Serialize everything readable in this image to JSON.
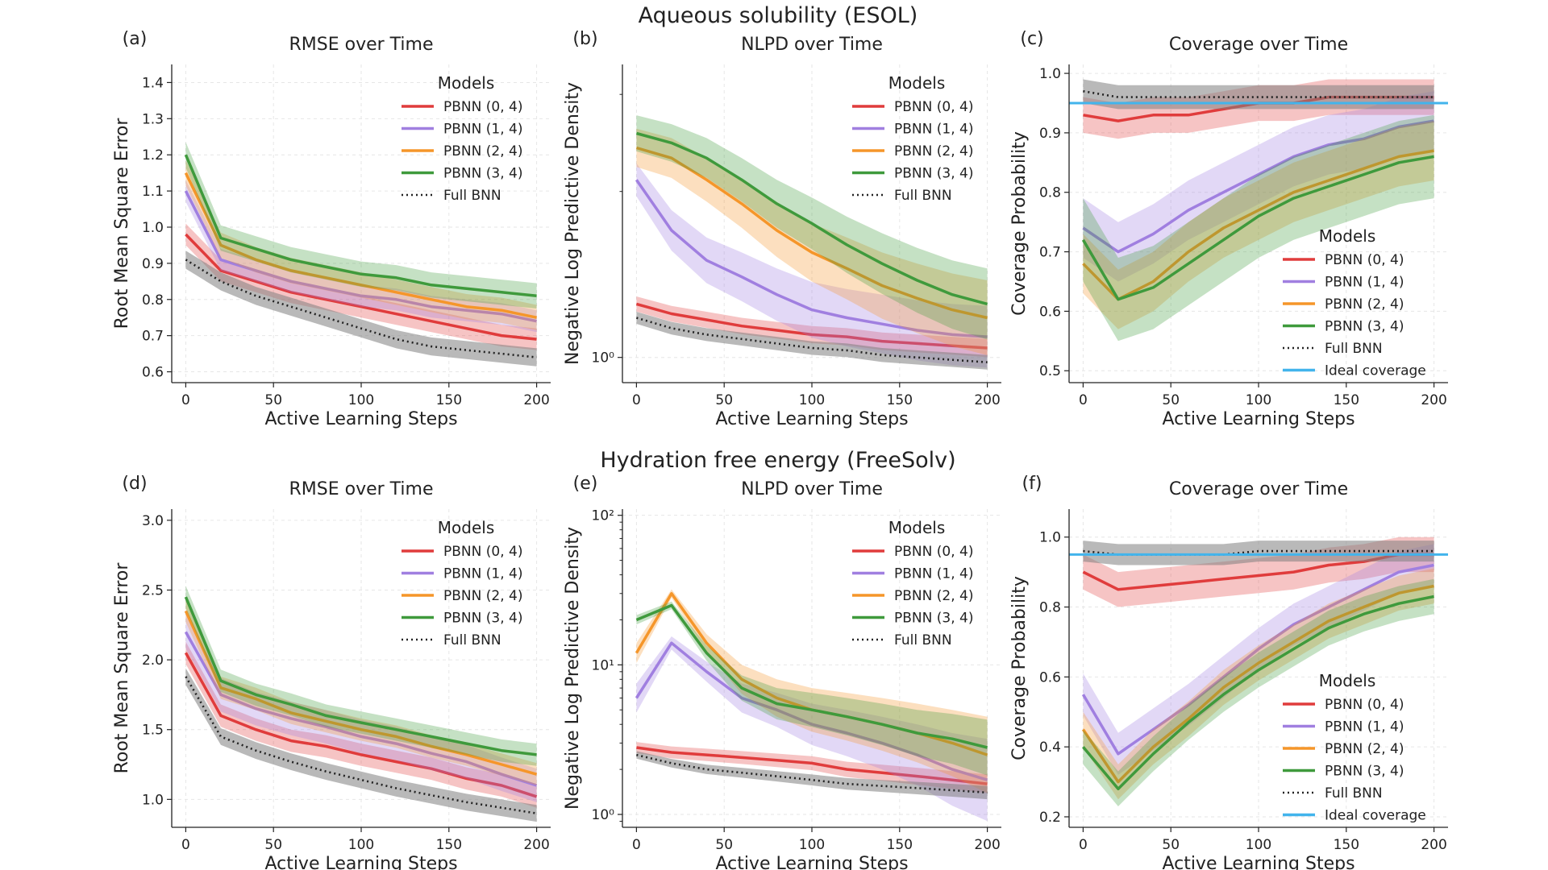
{
  "row_titles": [
    "Aqueous solubility (ESOL)",
    "Hydration free energy (FreeSolv)"
  ],
  "colors": {
    "PBNN (0, 4)": "#e03c3c",
    "PBNN (1, 4)": "#a07fe0",
    "PBNN (2, 4)": "#f5962a",
    "PBNN (3, 4)": "#3f9a3c",
    "Full BNN": "#222222",
    "Ideal coverage": "#42b4ec"
  },
  "legend_title": "Models",
  "xlabel": "Active Learning Steps",
  "chart_data": [
    {
      "panel": "(a)",
      "type": "line",
      "title": "RMSE over Time",
      "xlabel": "Active Learning Steps",
      "ylabel": "Root Mean Square Error",
      "xlim": [
        -8,
        208
      ],
      "ylim": [
        0.57,
        1.45
      ],
      "scale": "linear",
      "xticks": [
        0,
        50,
        100,
        150,
        200
      ],
      "yticks": [
        0.6,
        0.7,
        0.8,
        0.9,
        1.0,
        1.1,
        1.2,
        1.3,
        1.4
      ],
      "yticklabels": [
        "0.6",
        "0.7",
        "0.8",
        "0.9",
        "1.0",
        "1.1",
        "1.2",
        "1.3",
        "1.4"
      ],
      "legend": [
        "PBNN (0, 4)",
        "PBNN (1, 4)",
        "PBNN (2, 4)",
        "PBNN (3, 4)",
        "Full BNN"
      ],
      "x": [
        0,
        20,
        40,
        60,
        80,
        100,
        120,
        140,
        160,
        180,
        200
      ],
      "series": [
        {
          "name": "PBNN (0, 4)",
          "values": [
            0.98,
            0.88,
            0.85,
            0.82,
            0.8,
            0.78,
            0.76,
            0.74,
            0.72,
            0.7,
            0.69
          ],
          "band": 0.03
        },
        {
          "name": "PBNN (1, 4)",
          "values": [
            1.1,
            0.91,
            0.88,
            0.85,
            0.83,
            0.81,
            0.8,
            0.78,
            0.77,
            0.76,
            0.74
          ],
          "band": 0.03
        },
        {
          "name": "PBNN (2, 4)",
          "values": [
            1.15,
            0.95,
            0.91,
            0.88,
            0.86,
            0.84,
            0.82,
            0.8,
            0.78,
            0.77,
            0.75
          ],
          "band": 0.035
        },
        {
          "name": "PBNN (3, 4)",
          "values": [
            1.2,
            0.97,
            0.94,
            0.91,
            0.89,
            0.87,
            0.86,
            0.84,
            0.83,
            0.82,
            0.81
          ],
          "band": 0.035
        },
        {
          "name": "Full BNN",
          "values": [
            0.91,
            0.85,
            0.81,
            0.78,
            0.75,
            0.72,
            0.69,
            0.67,
            0.66,
            0.65,
            0.64
          ],
          "band": 0.025
        }
      ]
    },
    {
      "panel": "(b)",
      "type": "line",
      "title": "NLPD over Time",
      "xlabel": "Active Learning Steps",
      "ylabel": "Negative Log Predictive Density",
      "xlim": [
        -8,
        208
      ],
      "ylim": [
        0.9,
        3.4
      ],
      "scale": "log",
      "xticks": [
        0,
        50,
        100,
        150,
        200
      ],
      "yticks": [
        1
      ],
      "yticklabels": [
        "10⁰"
      ],
      "legend": [
        "PBNN (0, 4)",
        "PBNN (1, 4)",
        "PBNN (2, 4)",
        "PBNN (3, 4)",
        "Full BNN"
      ],
      "x": [
        0,
        20,
        40,
        60,
        80,
        100,
        120,
        140,
        160,
        180,
        200
      ],
      "series": [
        {
          "name": "PBNN (0, 4)",
          "values": [
            1.25,
            1.2,
            1.17,
            1.14,
            1.12,
            1.1,
            1.09,
            1.07,
            1.06,
            1.05,
            1.04
          ],
          "band": 0.04
        },
        {
          "name": "PBNN (1, 4)",
          "values": [
            2.1,
            1.7,
            1.5,
            1.4,
            1.3,
            1.22,
            1.18,
            1.15,
            1.12,
            1.1,
            1.09
          ],
          "band": 0.15
        },
        {
          "name": "PBNN (2, 4)",
          "values": [
            2.4,
            2.3,
            2.1,
            1.9,
            1.7,
            1.55,
            1.45,
            1.35,
            1.28,
            1.22,
            1.18
          ],
          "band": 0.2
        },
        {
          "name": "PBNN (3, 4)",
          "values": [
            2.55,
            2.45,
            2.3,
            2.1,
            1.9,
            1.75,
            1.6,
            1.48,
            1.38,
            1.3,
            1.25
          ],
          "band": 0.2
        },
        {
          "name": "Full BNN",
          "values": [
            1.18,
            1.13,
            1.1,
            1.08,
            1.06,
            1.04,
            1.03,
            1.01,
            1.0,
            0.99,
            0.98
          ],
          "band": 0.03
        }
      ]
    },
    {
      "panel": "(c)",
      "type": "line",
      "title": "Coverage over Time",
      "xlabel": "Active Learning Steps",
      "ylabel": "Coverage Probability",
      "xlim": [
        -8,
        208
      ],
      "ylim": [
        0.48,
        1.015
      ],
      "scale": "linear",
      "xticks": [
        0,
        50,
        100,
        150,
        200
      ],
      "yticks": [
        0.5,
        0.6,
        0.7,
        0.8,
        0.9,
        1.0
      ],
      "yticklabels": [
        "0.5",
        "0.6",
        "0.7",
        "0.8",
        "0.9",
        "1.0"
      ],
      "legend": [
        "PBNN (0, 4)",
        "PBNN (1, 4)",
        "PBNN (2, 4)",
        "PBNN (3, 4)",
        "Full BNN",
        "Ideal coverage"
      ],
      "ideal": 0.95,
      "x": [
        0,
        20,
        40,
        60,
        80,
        100,
        120,
        140,
        160,
        180,
        200
      ],
      "series": [
        {
          "name": "PBNN (0, 4)",
          "values": [
            0.93,
            0.92,
            0.93,
            0.93,
            0.94,
            0.95,
            0.95,
            0.96,
            0.96,
            0.96,
            0.96
          ],
          "band": 0.03
        },
        {
          "name": "PBNN (1, 4)",
          "values": [
            0.74,
            0.7,
            0.73,
            0.77,
            0.8,
            0.83,
            0.86,
            0.88,
            0.89,
            0.91,
            0.92
          ],
          "band": 0.05
        },
        {
          "name": "PBNN (2, 4)",
          "values": [
            0.68,
            0.62,
            0.65,
            0.7,
            0.74,
            0.77,
            0.8,
            0.82,
            0.84,
            0.86,
            0.87
          ],
          "band": 0.05
        },
        {
          "name": "PBNN (3, 4)",
          "values": [
            0.72,
            0.62,
            0.64,
            0.68,
            0.72,
            0.76,
            0.79,
            0.81,
            0.83,
            0.85,
            0.86
          ],
          "band": 0.07
        },
        {
          "name": "Full BNN",
          "values": [
            0.97,
            0.96,
            0.96,
            0.96,
            0.96,
            0.96,
            0.96,
            0.96,
            0.96,
            0.96,
            0.96
          ],
          "band": 0.02
        }
      ]
    },
    {
      "panel": "(d)",
      "type": "line",
      "title": "RMSE over Time",
      "xlabel": "Active Learning Steps",
      "ylabel": "Root Mean Square Error",
      "xlim": [
        -8,
        208
      ],
      "ylim": [
        0.8,
        3.08
      ],
      "scale": "linear",
      "xticks": [
        0,
        50,
        100,
        150,
        200
      ],
      "yticks": [
        1.0,
        1.5,
        2.0,
        2.5,
        3.0
      ],
      "yticklabels": [
        "1.0",
        "1.5",
        "2.0",
        "2.5",
        "3.0"
      ],
      "legend": [
        "PBNN (0, 4)",
        "PBNN (1, 4)",
        "PBNN (2, 4)",
        "PBNN (3, 4)",
        "Full BNN"
      ],
      "x": [
        0,
        20,
        40,
        60,
        80,
        100,
        120,
        140,
        160,
        180,
        200
      ],
      "series": [
        {
          "name": "PBNN (0, 4)",
          "values": [
            2.05,
            1.6,
            1.5,
            1.42,
            1.38,
            1.32,
            1.27,
            1.22,
            1.15,
            1.1,
            1.02
          ],
          "band": 0.08
        },
        {
          "name": "PBNN (1, 4)",
          "values": [
            2.2,
            1.75,
            1.65,
            1.58,
            1.52,
            1.45,
            1.4,
            1.33,
            1.27,
            1.18,
            1.1
          ],
          "band": 0.12
        },
        {
          "name": "PBNN (2, 4)",
          "values": [
            2.35,
            1.8,
            1.72,
            1.62,
            1.56,
            1.5,
            1.45,
            1.38,
            1.32,
            1.25,
            1.18
          ],
          "band": 0.08
        },
        {
          "name": "PBNN (3, 4)",
          "values": [
            2.45,
            1.85,
            1.75,
            1.68,
            1.6,
            1.55,
            1.5,
            1.45,
            1.4,
            1.35,
            1.32
          ],
          "band": 0.08
        },
        {
          "name": "Full BNN",
          "values": [
            1.88,
            1.45,
            1.35,
            1.27,
            1.2,
            1.14,
            1.08,
            1.03,
            0.98,
            0.94,
            0.9
          ],
          "band": 0.06
        }
      ]
    },
    {
      "panel": "(e)",
      "type": "line",
      "title": "NLPD over Time",
      "xlabel": "Active Learning Steps",
      "ylabel": "Negative Log Predictive Density",
      "xlim": [
        -8,
        208
      ],
      "ylim": [
        0.82,
        110
      ],
      "scale": "log",
      "xticks": [
        0,
        50,
        100,
        150,
        200
      ],
      "yticks": [
        1,
        10,
        100
      ],
      "yticklabels": [
        "10⁰",
        "10¹",
        "10²"
      ],
      "legend": [
        "PBNN (0, 4)",
        "PBNN (1, 4)",
        "PBNN (2, 4)",
        "PBNN (3, 4)",
        "Full BNN"
      ],
      "x": [
        0,
        20,
        40,
        60,
        80,
        100,
        120,
        140,
        160,
        180,
        200
      ],
      "series": [
        {
          "name": "PBNN (0, 4)",
          "values": [
            2.8,
            2.6,
            2.5,
            2.4,
            2.3,
            2.2,
            2.0,
            1.9,
            1.8,
            1.7,
            1.6
          ],
          "band": 0.25
        },
        {
          "name": "PBNN (1, 4)",
          "values": [
            6.0,
            14.0,
            9.0,
            6.0,
            5.0,
            4.0,
            3.5,
            3.0,
            2.5,
            2.0,
            1.7
          ],
          "band": 1.5
        },
        {
          "name": "PBNN (2, 4)",
          "values": [
            12.0,
            30.0,
            14.0,
            8.0,
            6.0,
            5.0,
            4.5,
            4.0,
            3.5,
            3.0,
            2.5
          ],
          "band": 2.0
        },
        {
          "name": "PBNN (3, 4)",
          "values": [
            20.0,
            25.0,
            12.0,
            7.0,
            5.5,
            5.0,
            4.5,
            4.0,
            3.5,
            3.2,
            2.8
          ],
          "band": 1.5
        },
        {
          "name": "Full BNN",
          "values": [
            2.5,
            2.2,
            2.0,
            1.9,
            1.8,
            1.7,
            1.6,
            1.55,
            1.5,
            1.45,
            1.4
          ],
          "band": 0.15
        }
      ]
    },
    {
      "panel": "(f)",
      "type": "line",
      "title": "Coverage over Time",
      "xlabel": "Active Learning Steps",
      "ylabel": "Coverage Probability",
      "xlim": [
        -8,
        208
      ],
      "ylim": [
        0.17,
        1.08
      ],
      "scale": "linear",
      "xticks": [
        0,
        50,
        100,
        150,
        200
      ],
      "yticks": [
        0.2,
        0.4,
        0.6,
        0.8,
        1.0
      ],
      "yticklabels": [
        "0.2",
        "0.4",
        "0.6",
        "0.8",
        "1.0"
      ],
      "legend": [
        "PBNN (0, 4)",
        "PBNN (1, 4)",
        "PBNN (2, 4)",
        "PBNN (3, 4)",
        "Full BNN",
        "Ideal coverage"
      ],
      "ideal": 0.95,
      "x": [
        0,
        20,
        40,
        60,
        80,
        100,
        120,
        140,
        160,
        180,
        200
      ],
      "series": [
        {
          "name": "PBNN (0, 4)",
          "values": [
            0.9,
            0.85,
            0.86,
            0.87,
            0.88,
            0.89,
            0.9,
            0.92,
            0.93,
            0.95,
            0.95
          ],
          "band": 0.05
        },
        {
          "name": "PBNN (1, 4)",
          "values": [
            0.55,
            0.38,
            0.45,
            0.52,
            0.6,
            0.68,
            0.75,
            0.8,
            0.85,
            0.9,
            0.92
          ],
          "band": 0.06
        },
        {
          "name": "PBNN (2, 4)",
          "values": [
            0.45,
            0.3,
            0.4,
            0.48,
            0.57,
            0.64,
            0.7,
            0.76,
            0.8,
            0.84,
            0.86
          ],
          "band": 0.05
        },
        {
          "name": "PBNN (3, 4)",
          "values": [
            0.4,
            0.28,
            0.38,
            0.47,
            0.55,
            0.62,
            0.68,
            0.74,
            0.78,
            0.81,
            0.83
          ],
          "band": 0.05
        },
        {
          "name": "Full BNN",
          "values": [
            0.96,
            0.95,
            0.95,
            0.95,
            0.95,
            0.96,
            0.96,
            0.96,
            0.96,
            0.96,
            0.96
          ],
          "band": 0.03
        }
      ]
    }
  ]
}
